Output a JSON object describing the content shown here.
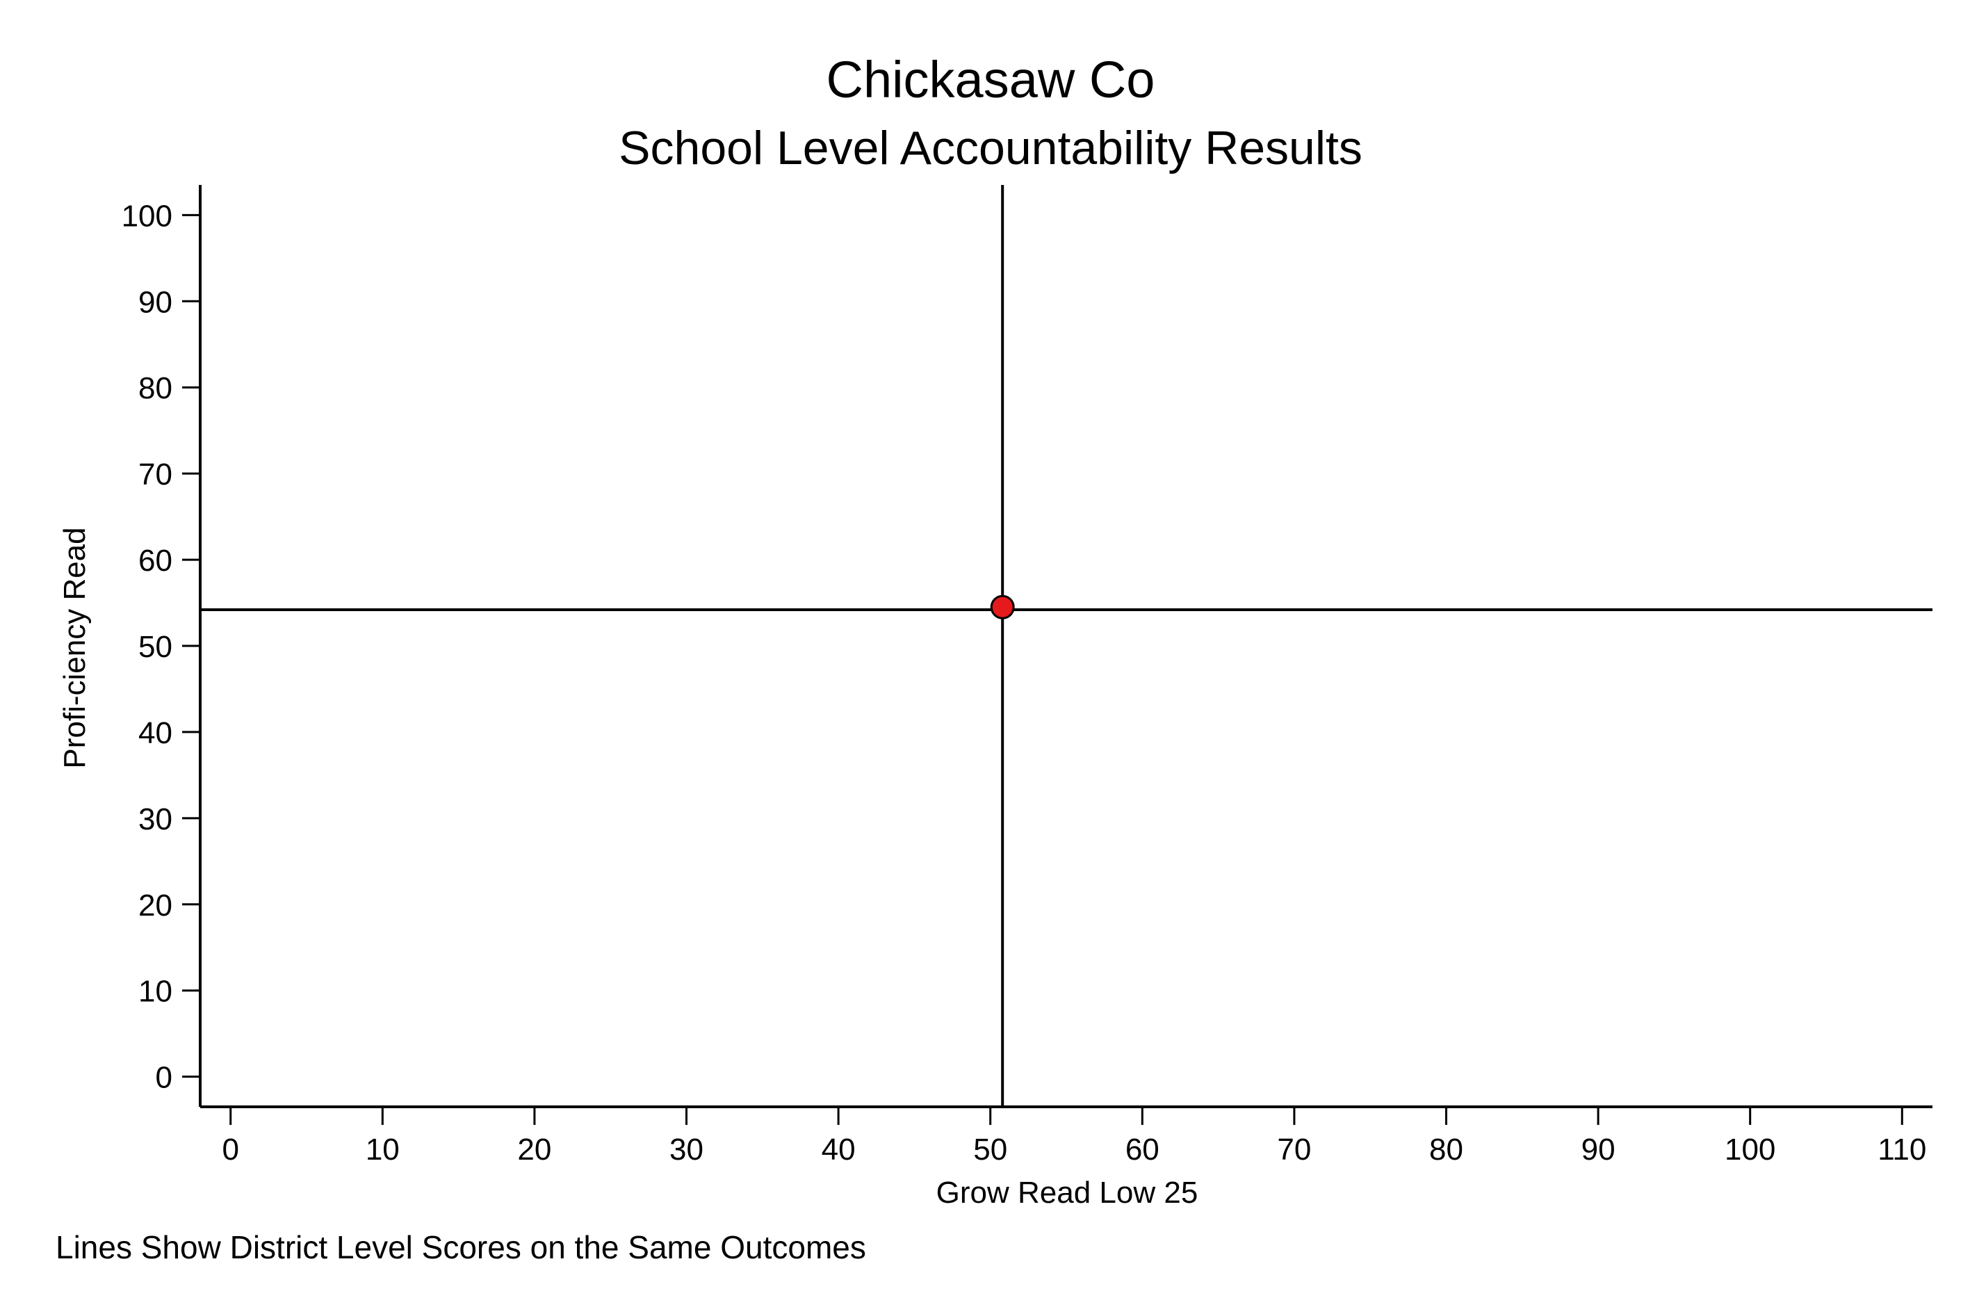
{
  "chart_data": {
    "type": "scatter",
    "title": "Chickasaw Co",
    "subtitle": "School Level Accountability Results",
    "xlabel": "Grow Read Low 25",
    "ylabel": "Profi-ciency Read",
    "note": "Lines Show District Level Scores on the Same Outcomes",
    "xlim": [
      -2,
      112
    ],
    "ylim": [
      -3.5,
      103.5
    ],
    "xticks": [
      0,
      10,
      20,
      30,
      40,
      50,
      60,
      70,
      80,
      90,
      100,
      110
    ],
    "yticks": [
      0,
      10,
      20,
      30,
      40,
      50,
      60,
      70,
      80,
      90,
      100
    ],
    "grid": false,
    "points": [
      {
        "x": 50.8,
        "y": 54.5
      }
    ],
    "reference_lines": {
      "vertical_x": 50.8,
      "horizontal_y": 54.2
    },
    "colors": {
      "point_fill": "#e41a1c",
      "point_stroke": "#000000",
      "line": "#000000"
    }
  }
}
